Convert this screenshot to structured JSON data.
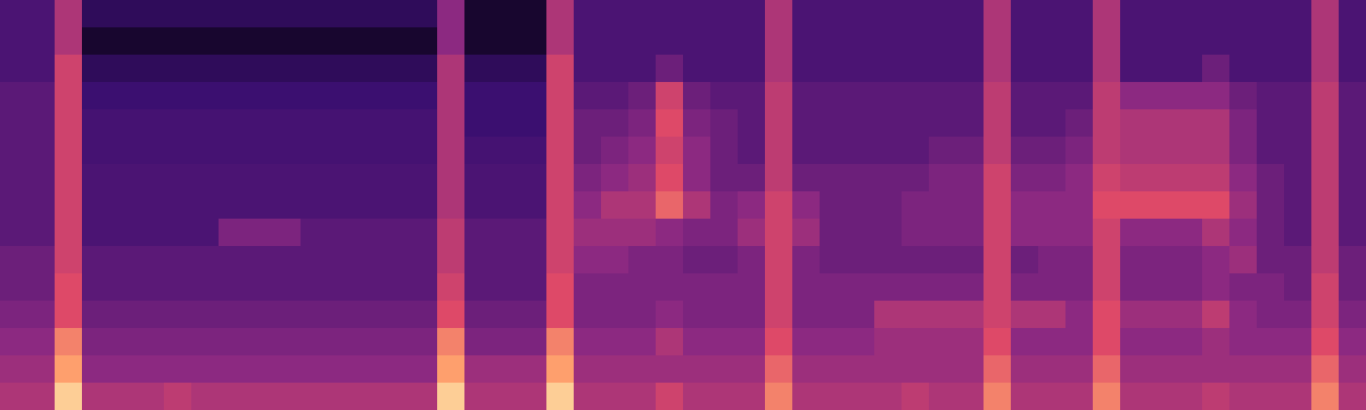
{
  "chart_data": {
    "type": "heatmap",
    "tick_labels": false,
    "xlim": [
      0,
      50
    ],
    "ylim": [
      0,
      15
    ],
    "color_range": [
      0,
      1
    ],
    "cells": [
      [
        0.3,
        0.3,
        0.6,
        0.2,
        0.2,
        0.2,
        0.2,
        0.2,
        0.2,
        0.2,
        0.2,
        0.2,
        0.2,
        0.2,
        0.2,
        0.2,
        0.5,
        0.1,
        0.1,
        0.1,
        0.6,
        0.3,
        0.3,
        0.3,
        0.3,
        0.3,
        0.3,
        0.3,
        0.6,
        0.3,
        0.3,
        0.3,
        0.3,
        0.3,
        0.3,
        0.3,
        0.6,
        0.3,
        0.3,
        0.3,
        0.6,
        0.3,
        0.3,
        0.3,
        0.3,
        0.3,
        0.3,
        0.3,
        0.6,
        0.3
      ],
      [
        0.3,
        0.3,
        0.6,
        0.1,
        0.1,
        0.1,
        0.1,
        0.1,
        0.1,
        0.1,
        0.1,
        0.1,
        0.1,
        0.1,
        0.1,
        0.1,
        0.5,
        0.1,
        0.1,
        0.1,
        0.6,
        0.3,
        0.3,
        0.3,
        0.3,
        0.3,
        0.3,
        0.3,
        0.6,
        0.3,
        0.3,
        0.3,
        0.3,
        0.3,
        0.3,
        0.3,
        0.6,
        0.3,
        0.3,
        0.3,
        0.6,
        0.3,
        0.3,
        0.3,
        0.3,
        0.3,
        0.3,
        0.3,
        0.6,
        0.3
      ],
      [
        0.3,
        0.3,
        0.7,
        0.2,
        0.2,
        0.2,
        0.2,
        0.2,
        0.2,
        0.2,
        0.2,
        0.2,
        0.2,
        0.2,
        0.2,
        0.2,
        0.6,
        0.2,
        0.2,
        0.2,
        0.7,
        0.3,
        0.3,
        0.3,
        0.4,
        0.3,
        0.3,
        0.3,
        0.6,
        0.3,
        0.3,
        0.3,
        0.3,
        0.3,
        0.3,
        0.3,
        0.6,
        0.3,
        0.3,
        0.3,
        0.6,
        0.3,
        0.3,
        0.3,
        0.4,
        0.3,
        0.3,
        0.3,
        0.6,
        0.3
      ],
      [
        0.35,
        0.35,
        0.7,
        0.25,
        0.25,
        0.25,
        0.25,
        0.25,
        0.25,
        0.25,
        0.25,
        0.25,
        0.25,
        0.25,
        0.25,
        0.25,
        0.6,
        0.25,
        0.25,
        0.25,
        0.7,
        0.35,
        0.35,
        0.4,
        0.7,
        0.4,
        0.35,
        0.35,
        0.65,
        0.35,
        0.35,
        0.35,
        0.35,
        0.35,
        0.35,
        0.35,
        0.65,
        0.35,
        0.35,
        0.35,
        0.65,
        0.5,
        0.5,
        0.5,
        0.5,
        0.4,
        0.35,
        0.35,
        0.65,
        0.35
      ],
      [
        0.35,
        0.35,
        0.7,
        0.28,
        0.28,
        0.28,
        0.28,
        0.28,
        0.28,
        0.28,
        0.28,
        0.28,
        0.28,
        0.28,
        0.28,
        0.28,
        0.6,
        0.25,
        0.25,
        0.25,
        0.7,
        0.4,
        0.4,
        0.45,
        0.75,
        0.45,
        0.4,
        0.35,
        0.65,
        0.35,
        0.35,
        0.35,
        0.35,
        0.35,
        0.35,
        0.35,
        0.65,
        0.35,
        0.35,
        0.4,
        0.65,
        0.6,
        0.6,
        0.6,
        0.6,
        0.45,
        0.35,
        0.35,
        0.65,
        0.35
      ],
      [
        0.35,
        0.35,
        0.7,
        0.28,
        0.28,
        0.28,
        0.28,
        0.28,
        0.28,
        0.28,
        0.28,
        0.28,
        0.28,
        0.28,
        0.28,
        0.28,
        0.6,
        0.28,
        0.28,
        0.28,
        0.7,
        0.4,
        0.45,
        0.5,
        0.7,
        0.5,
        0.4,
        0.35,
        0.65,
        0.35,
        0.35,
        0.35,
        0.35,
        0.35,
        0.4,
        0.4,
        0.65,
        0.4,
        0.4,
        0.45,
        0.65,
        0.6,
        0.6,
        0.6,
        0.6,
        0.45,
        0.35,
        0.35,
        0.65,
        0.35
      ],
      [
        0.35,
        0.35,
        0.7,
        0.3,
        0.3,
        0.3,
        0.3,
        0.3,
        0.3,
        0.3,
        0.3,
        0.3,
        0.3,
        0.3,
        0.3,
        0.3,
        0.6,
        0.3,
        0.3,
        0.3,
        0.7,
        0.45,
        0.5,
        0.55,
        0.75,
        0.5,
        0.4,
        0.4,
        0.65,
        0.4,
        0.4,
        0.4,
        0.4,
        0.4,
        0.45,
        0.45,
        0.7,
        0.45,
        0.45,
        0.5,
        0.7,
        0.65,
        0.65,
        0.65,
        0.65,
        0.5,
        0.4,
        0.35,
        0.65,
        0.35
      ],
      [
        0.35,
        0.35,
        0.7,
        0.3,
        0.3,
        0.3,
        0.3,
        0.3,
        0.3,
        0.3,
        0.3,
        0.3,
        0.3,
        0.3,
        0.3,
        0.3,
        0.6,
        0.3,
        0.3,
        0.3,
        0.7,
        0.5,
        0.6,
        0.6,
        0.8,
        0.6,
        0.45,
        0.5,
        0.7,
        0.5,
        0.4,
        0.4,
        0.4,
        0.45,
        0.45,
        0.45,
        0.7,
        0.5,
        0.5,
        0.5,
        0.75,
        0.75,
        0.75,
        0.75,
        0.75,
        0.55,
        0.4,
        0.35,
        0.65,
        0.35
      ],
      [
        0.35,
        0.35,
        0.7,
        0.3,
        0.3,
        0.3,
        0.3,
        0.3,
        0.45,
        0.45,
        0.45,
        0.35,
        0.35,
        0.35,
        0.35,
        0.35,
        0.65,
        0.35,
        0.35,
        0.35,
        0.7,
        0.55,
        0.55,
        0.55,
        0.5,
        0.45,
        0.45,
        0.55,
        0.7,
        0.55,
        0.4,
        0.4,
        0.4,
        0.45,
        0.45,
        0.45,
        0.7,
        0.5,
        0.5,
        0.5,
        0.7,
        0.5,
        0.5,
        0.5,
        0.6,
        0.5,
        0.4,
        0.35,
        0.65,
        0.35
      ],
      [
        0.4,
        0.4,
        0.7,
        0.35,
        0.35,
        0.35,
        0.35,
        0.35,
        0.35,
        0.35,
        0.35,
        0.35,
        0.35,
        0.35,
        0.35,
        0.35,
        0.65,
        0.35,
        0.35,
        0.35,
        0.7,
        0.5,
        0.5,
        0.45,
        0.45,
        0.4,
        0.4,
        0.45,
        0.7,
        0.45,
        0.4,
        0.4,
        0.4,
        0.4,
        0.4,
        0.4,
        0.7,
        0.4,
        0.45,
        0.45,
        0.7,
        0.45,
        0.45,
        0.45,
        0.5,
        0.55,
        0.4,
        0.4,
        0.65,
        0.4
      ],
      [
        0.4,
        0.4,
        0.75,
        0.35,
        0.35,
        0.35,
        0.35,
        0.35,
        0.35,
        0.35,
        0.35,
        0.35,
        0.35,
        0.35,
        0.35,
        0.35,
        0.7,
        0.35,
        0.35,
        0.35,
        0.75,
        0.45,
        0.45,
        0.45,
        0.45,
        0.45,
        0.45,
        0.45,
        0.7,
        0.45,
        0.45,
        0.45,
        0.45,
        0.45,
        0.45,
        0.45,
        0.7,
        0.45,
        0.45,
        0.45,
        0.7,
        0.45,
        0.45,
        0.45,
        0.5,
        0.45,
        0.45,
        0.4,
        0.7,
        0.4
      ],
      [
        0.45,
        0.45,
        0.75,
        0.4,
        0.4,
        0.4,
        0.4,
        0.4,
        0.4,
        0.4,
        0.4,
        0.4,
        0.4,
        0.4,
        0.4,
        0.4,
        0.75,
        0.4,
        0.4,
        0.4,
        0.75,
        0.45,
        0.45,
        0.45,
        0.5,
        0.45,
        0.45,
        0.45,
        0.7,
        0.45,
        0.45,
        0.45,
        0.6,
        0.6,
        0.6,
        0.6,
        0.7,
        0.6,
        0.6,
        0.5,
        0.75,
        0.55,
        0.55,
        0.55,
        0.65,
        0.5,
        0.45,
        0.45,
        0.7,
        0.45
      ],
      [
        0.5,
        0.5,
        0.85,
        0.45,
        0.45,
        0.45,
        0.45,
        0.45,
        0.45,
        0.45,
        0.45,
        0.45,
        0.45,
        0.45,
        0.45,
        0.45,
        0.85,
        0.45,
        0.45,
        0.45,
        0.85,
        0.5,
        0.5,
        0.5,
        0.6,
        0.5,
        0.5,
        0.5,
        0.75,
        0.5,
        0.5,
        0.5,
        0.55,
        0.55,
        0.55,
        0.55,
        0.75,
        0.5,
        0.5,
        0.5,
        0.75,
        0.5,
        0.5,
        0.5,
        0.55,
        0.5,
        0.5,
        0.5,
        0.75,
        0.5
      ],
      [
        0.55,
        0.55,
        0.9,
        0.5,
        0.5,
        0.5,
        0.5,
        0.5,
        0.5,
        0.5,
        0.5,
        0.5,
        0.5,
        0.5,
        0.5,
        0.5,
        0.9,
        0.55,
        0.55,
        0.55,
        0.9,
        0.55,
        0.55,
        0.55,
        0.55,
        0.55,
        0.55,
        0.55,
        0.8,
        0.55,
        0.55,
        0.55,
        0.55,
        0.55,
        0.55,
        0.55,
        0.8,
        0.55,
        0.55,
        0.55,
        0.8,
        0.55,
        0.55,
        0.55,
        0.55,
        0.55,
        0.55,
        0.55,
        0.8,
        0.55
      ],
      [
        0.6,
        0.6,
        0.95,
        0.6,
        0.6,
        0.6,
        0.65,
        0.6,
        0.6,
        0.6,
        0.6,
        0.6,
        0.6,
        0.6,
        0.6,
        0.6,
        0.95,
        0.6,
        0.6,
        0.6,
        0.95,
        0.6,
        0.6,
        0.6,
        0.7,
        0.6,
        0.6,
        0.6,
        0.85,
        0.6,
        0.6,
        0.6,
        0.6,
        0.65,
        0.6,
        0.6,
        0.85,
        0.6,
        0.6,
        0.6,
        0.85,
        0.6,
        0.6,
        0.6,
        0.65,
        0.6,
        0.6,
        0.6,
        0.85,
        0.6
      ]
    ]
  }
}
